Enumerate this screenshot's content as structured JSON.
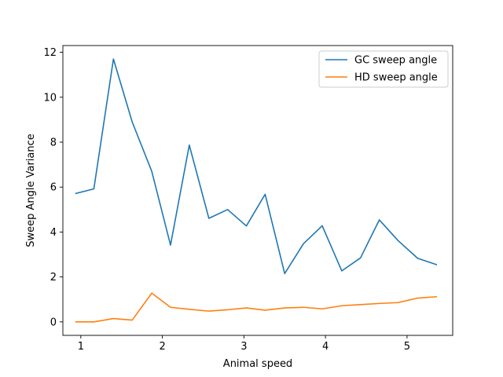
{
  "chart_data": {
    "type": "line",
    "title": "",
    "xlabel": "Animal speed",
    "ylabel": "Sweep Angle Variance",
    "xlim": [
      0.78,
      5.56
    ],
    "ylim": [
      -0.6,
      12.3
    ],
    "xticks": [
      1,
      2,
      3,
      4,
      5
    ],
    "yticks": [
      0,
      2,
      4,
      6,
      8,
      10,
      12
    ],
    "grid": false,
    "legend_position": "top-right",
    "x": [
      0.94,
      1.16,
      1.4,
      1.63,
      1.87,
      2.1,
      2.33,
      2.57,
      2.8,
      3.03,
      3.26,
      3.5,
      3.73,
      3.96,
      4.2,
      4.43,
      4.66,
      4.89,
      5.13,
      5.36
    ],
    "series": [
      {
        "name": "GC sweep angle",
        "color": "#1f77b4",
        "values": [
          5.72,
          5.92,
          11.7,
          8.9,
          6.7,
          3.42,
          7.87,
          4.61,
          5.0,
          4.27,
          5.68,
          2.15,
          3.48,
          4.28,
          2.27,
          2.85,
          4.54,
          3.62,
          2.83,
          2.55
        ]
      },
      {
        "name": "HD sweep angle",
        "color": "#ff7f0e",
        "values": [
          0.0,
          0.0,
          0.15,
          0.08,
          1.28,
          0.65,
          0.56,
          0.48,
          0.54,
          0.62,
          0.52,
          0.62,
          0.65,
          0.58,
          0.72,
          0.77,
          0.82,
          0.86,
          1.06,
          1.12
        ]
      }
    ]
  }
}
